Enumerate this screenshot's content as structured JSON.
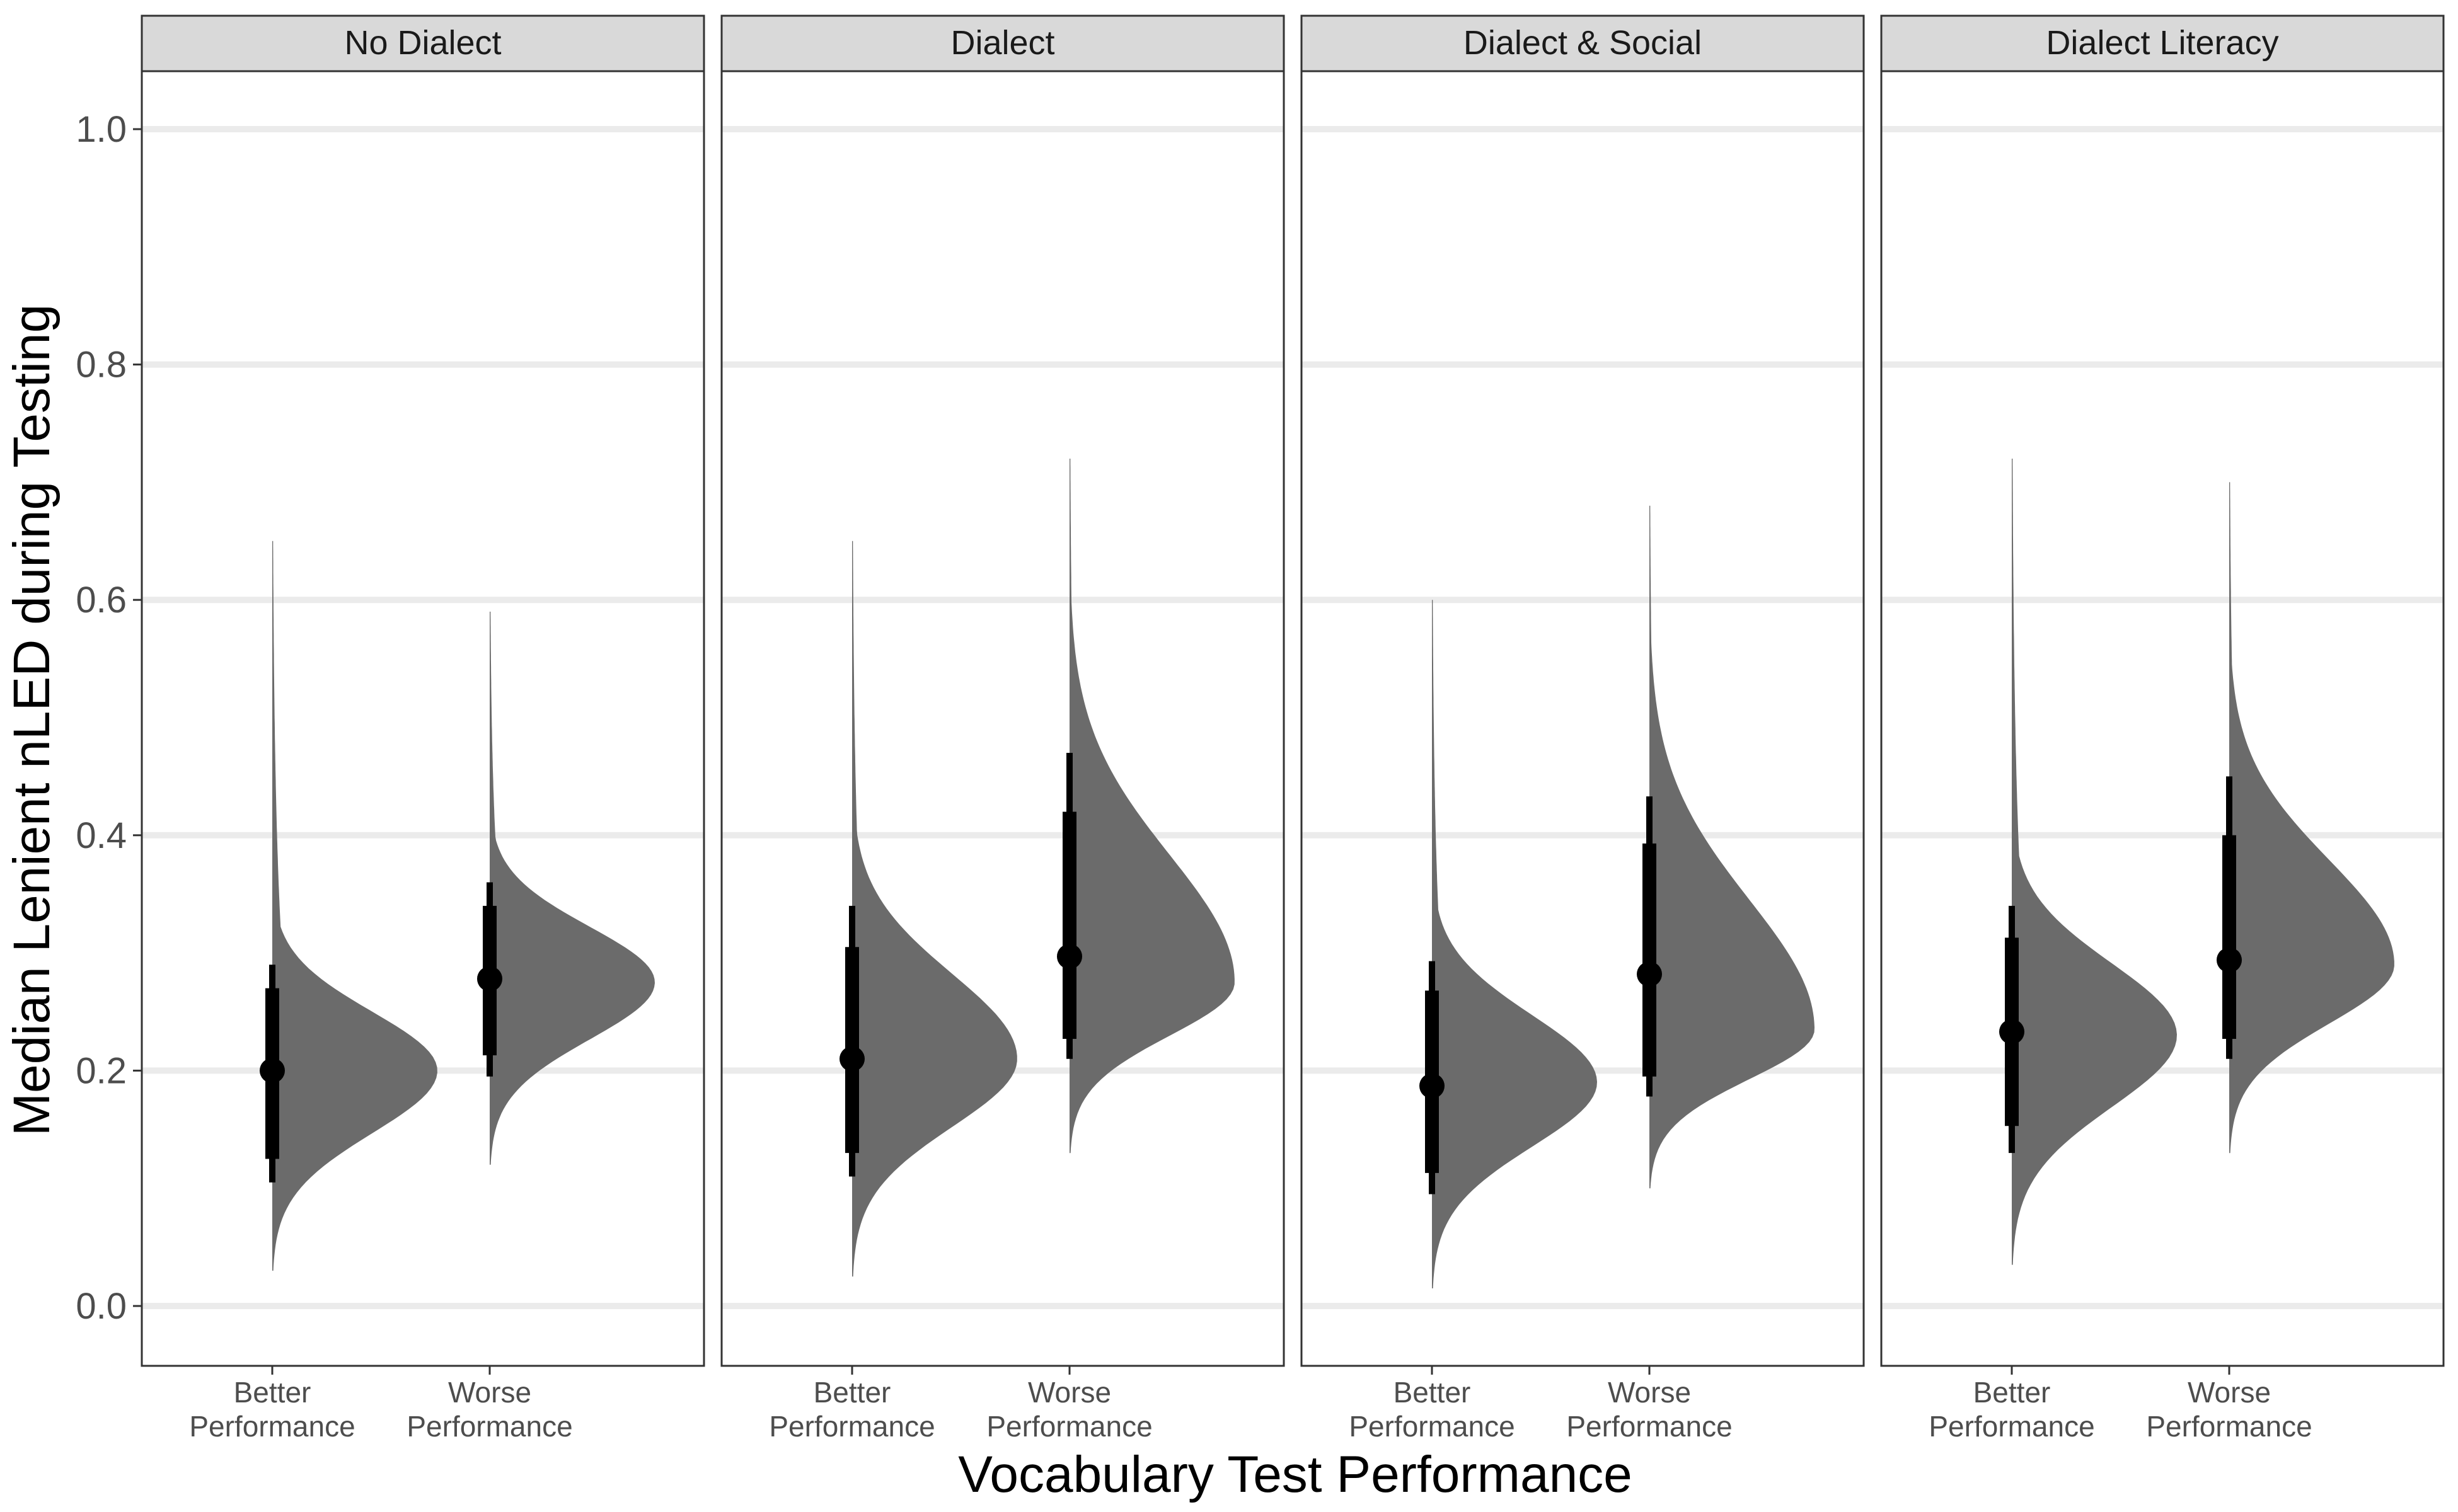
{
  "chart_data": {
    "type": "halfeye",
    "xlabel": "Vocabulary Test Performance",
    "ylabel": "Median Lenient nLED during Testing",
    "ylim": [
      -0.05,
      1.05
    ],
    "y_ticks": [
      "0.0",
      "0.2",
      "0.4",
      "0.6",
      "0.8",
      "1.0"
    ],
    "grid": "horizontal major lines",
    "legend": "none",
    "colors": {
      "density": "#6b6b6b",
      "interval": "#000000",
      "strip": "#d9d9d9",
      "grid": "#ebebeb"
    },
    "categories": [
      {
        "line1": "Better",
        "line2": "Performance"
      },
      {
        "line1": "Worse",
        "line2": "Performance"
      }
    ],
    "panels": [
      {
        "title": "No Dialect",
        "groups": [
          {
            "category": "Better Performance",
            "median": 0.2,
            "interval_66": [
              0.125,
              0.27
            ],
            "interval_95": [
              0.105,
              0.29
            ],
            "range": [
              0.03,
              0.65
            ],
            "mode": 0.2
          },
          {
            "category": "Worse Performance",
            "median": 0.278,
            "interval_66": [
              0.213,
              0.34
            ],
            "interval_95": [
              0.195,
              0.36
            ],
            "range": [
              0.12,
              0.59
            ],
            "mode": 0.275
          }
        ]
      },
      {
        "title": "Dialect",
        "groups": [
          {
            "category": "Better Performance",
            "median": 0.21,
            "interval_66": [
              0.13,
              0.305
            ],
            "interval_95": [
              0.11,
              0.34
            ],
            "range": [
              0.025,
              0.65
            ],
            "mode": 0.21
          },
          {
            "category": "Worse Performance",
            "median": 0.297,
            "interval_66": [
              0.227,
              0.42
            ],
            "interval_95": [
              0.21,
              0.47
            ],
            "range": [
              0.13,
              0.72
            ],
            "mode": 0.275
          }
        ]
      },
      {
        "title": "Dialect & Social",
        "groups": [
          {
            "category": "Better Performance",
            "median": 0.187,
            "interval_66": [
              0.113,
              0.268
            ],
            "interval_95": [
              0.095,
              0.293
            ],
            "range": [
              0.015,
              0.6
            ],
            "mode": 0.19
          },
          {
            "category": "Worse Performance",
            "median": 0.282,
            "interval_66": [
              0.195,
              0.393
            ],
            "interval_95": [
              0.178,
              0.433
            ],
            "range": [
              0.1,
              0.68
            ],
            "mode": 0.235
          }
        ]
      },
      {
        "title": "Dialect Literacy",
        "groups": [
          {
            "category": "Better Performance",
            "median": 0.233,
            "interval_66": [
              0.153,
              0.313
            ],
            "interval_95": [
              0.13,
              0.34
            ],
            "range": [
              0.035,
              0.72
            ],
            "mode": 0.23
          },
          {
            "category": "Worse Performance",
            "median": 0.294,
            "interval_66": [
              0.227,
              0.4
            ],
            "interval_95": [
              0.21,
              0.45
            ],
            "range": [
              0.13,
              0.7
            ],
            "mode": 0.29
          }
        ]
      }
    ]
  }
}
